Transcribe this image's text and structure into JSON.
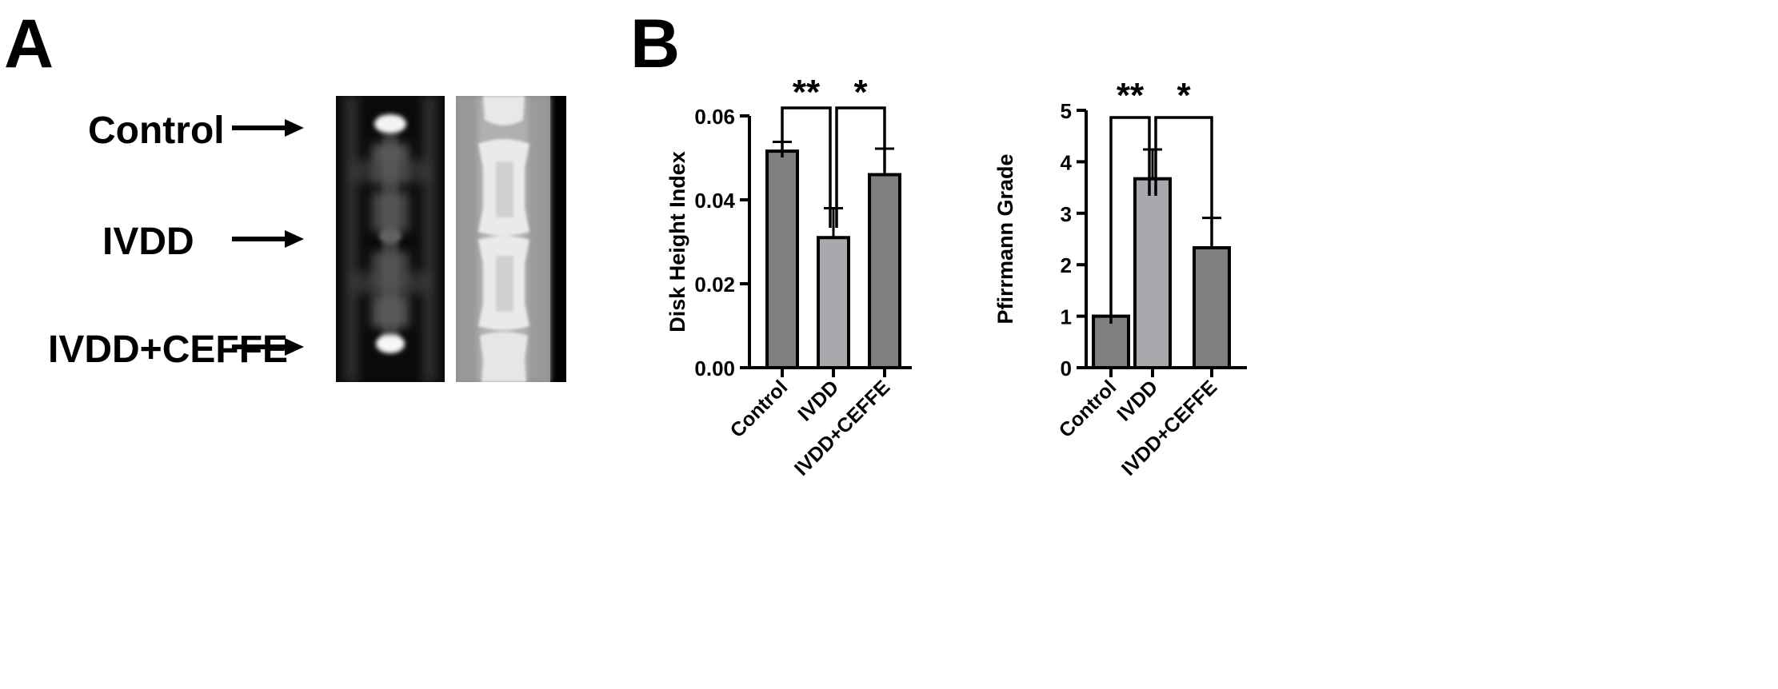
{
  "panel_a": {
    "letter": "A",
    "rows": [
      "Control",
      "IVDD",
      "IVDD+CEFFE"
    ]
  },
  "panel_b": {
    "letter": "B"
  },
  "colors": {
    "bar_dark": "#7f7f7f",
    "bar_light": "#a8a8ad",
    "ink": "#000000"
  },
  "chart_data": [
    {
      "type": "bar",
      "title": "",
      "xlabel": "",
      "ylabel": "Disk Height Index",
      "categories": [
        "Control",
        "IVDD",
        "IVDD+CEFFE"
      ],
      "values": [
        0.0516,
        0.031,
        0.046
      ],
      "errors": [
        0.0022,
        0.007,
        0.0062
      ],
      "ylim": [
        0,
        0.06
      ],
      "yticks": [
        "0.00",
        "0.02",
        "0.04",
        "0.06"
      ],
      "significance": [
        {
          "from": "Control",
          "to": "IVDD",
          "label": "**"
        },
        {
          "from": "IVDD",
          "to": "IVDD+CEFFE",
          "label": "*"
        }
      ]
    },
    {
      "type": "bar",
      "title": "",
      "xlabel": "",
      "ylabel": "Pfirrmann Grade",
      "categories": [
        "Control",
        "IVDD",
        "IVDD+CEFFE"
      ],
      "values": [
        1.0,
        3.67,
        2.33
      ],
      "errors": [
        0.0,
        0.57,
        0.58
      ],
      "ylim": [
        0,
        5
      ],
      "yticks": [
        "0",
        "1",
        "2",
        "3",
        "4",
        "5"
      ],
      "significance": [
        {
          "from": "Control",
          "to": "IVDD",
          "label": "**"
        },
        {
          "from": "IVDD",
          "to": "IVDD+CEFFE",
          "label": "*"
        }
      ]
    }
  ]
}
